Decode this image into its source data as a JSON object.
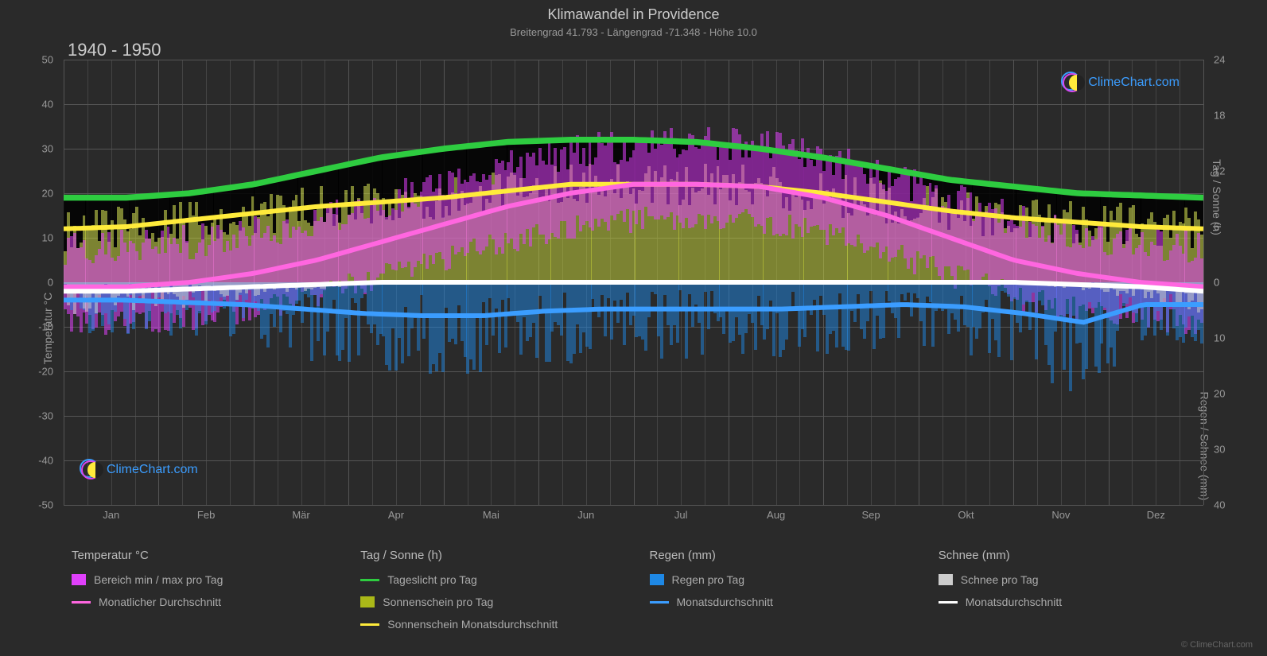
{
  "title": "Klimawandel in Providence",
  "subtitle": "Breitengrad 41.793 - Längengrad -71.348 - Höhe 10.0",
  "year_range": "1940 - 1950",
  "copyright": "© ClimeChart.com",
  "watermark_text": "ClimeChart.com",
  "watermark_color": "#3b9dff",
  "watermark_circle1": "#3b9dff",
  "watermark_circle2": "#d946ef",
  "background_color": "#2a2a2a",
  "grid_color": "#555555",
  "grid_minor_color": "#444444",
  "text_color": "#999999",
  "axis_left": {
    "label": "Temperatur °C",
    "min": -50,
    "max": 50,
    "ticks": [
      -50,
      -40,
      -30,
      -20,
      -10,
      0,
      10,
      20,
      30,
      40,
      50
    ]
  },
  "axis_right_top": {
    "label": "Tag / Sonne (h)",
    "min": 0,
    "max": 24,
    "ticks": [
      0,
      6,
      12,
      18,
      24
    ]
  },
  "axis_right_bot": {
    "label": "Regen / Schnee (mm)",
    "min": 0,
    "max": 40,
    "ticks": [
      0,
      10,
      20,
      30,
      40
    ]
  },
  "months": [
    "Jan",
    "Feb",
    "Mär",
    "Apr",
    "Mai",
    "Jun",
    "Jul",
    "Aug",
    "Sep",
    "Okt",
    "Nov",
    "Dez"
  ],
  "series": {
    "daylight": {
      "color": "#2ecc40",
      "width": 2.5,
      "label": "Tageslicht pro Tag",
      "values": [
        19,
        19,
        20,
        22,
        25,
        28,
        30,
        31.5,
        32,
        32,
        31.5,
        30,
        28,
        25.5,
        23,
        21.5,
        20,
        19.5,
        19
      ]
    },
    "sunshine_avg": {
      "color": "#ffeb3b",
      "width": 2,
      "label": "Sonnenschein Monatsdurchschnitt",
      "values": [
        12,
        12.5,
        14,
        15.5,
        17,
        18,
        19,
        20.5,
        22,
        22,
        22,
        21.5,
        20,
        18,
        16,
        14.5,
        13.5,
        12.5,
        12
      ]
    },
    "temp_avg": {
      "color": "#ff66e0",
      "width": 2,
      "label": "Monatlicher Durchschnitt",
      "values": [
        -1,
        -1,
        0,
        2,
        5,
        9,
        13,
        17,
        20,
        22,
        22,
        21.5,
        19,
        15,
        10,
        5,
        2,
        0,
        -1
      ]
    },
    "rain_avg": {
      "color": "#3b9dff",
      "width": 2,
      "label": "Monatsdurchschnitt",
      "values": [
        -4,
        -4,
        -4.5,
        -5,
        -6,
        -7,
        -7.5,
        -7.5,
        -6.5,
        -6,
        -6,
        -6,
        -6,
        -5.5,
        -5,
        -5.5,
        -7,
        -9,
        -5,
        -5
      ]
    },
    "snow_avg": {
      "color": "#ffffff",
      "width": 2,
      "label": "Monatsdurchschnitt",
      "values": [
        -2,
        -2,
        -1.5,
        -1,
        -0.5,
        0,
        0,
        0,
        0,
        0,
        0,
        0,
        0,
        0,
        0,
        0,
        -0.5,
        -1,
        -2
      ]
    }
  },
  "fills": {
    "temp_range": {
      "color": "#e040fb",
      "opacity": 0.55,
      "label": "Bereich min / max pro Tag"
    },
    "sunshine": {
      "color": "#cddc39",
      "opacity": 0.5,
      "label": "Sonnenschein pro Tag"
    },
    "rain": {
      "color": "#1e88e5",
      "opacity": 0.5,
      "label": "Regen pro Tag"
    },
    "snow": {
      "color": "#cccccc",
      "opacity": 0.55,
      "label": "Schnee pro Tag"
    },
    "black_cap": {
      "color": "#000000",
      "opacity": 0.85
    }
  },
  "legend": [
    {
      "heading": "Temperatur °C",
      "items": [
        {
          "type": "swatch",
          "color": "#e040fb",
          "label": "Bereich min / max pro Tag"
        },
        {
          "type": "line",
          "color": "#ff66e0",
          "label": "Monatlicher Durchschnitt"
        }
      ]
    },
    {
      "heading": "Tag / Sonne (h)",
      "items": [
        {
          "type": "line",
          "color": "#2ecc40",
          "label": "Tageslicht pro Tag"
        },
        {
          "type": "swatch",
          "color": "#aab818",
          "label": "Sonnenschein pro Tag"
        },
        {
          "type": "line",
          "color": "#ffeb3b",
          "label": "Sonnenschein Monatsdurchschnitt"
        }
      ]
    },
    {
      "heading": "Regen (mm)",
      "items": [
        {
          "type": "swatch",
          "color": "#1e88e5",
          "label": "Regen pro Tag"
        },
        {
          "type": "line",
          "color": "#3b9dff",
          "label": "Monatsdurchschnitt"
        }
      ]
    },
    {
      "heading": "Schnee (mm)",
      "items": [
        {
          "type": "swatch",
          "color": "#cccccc",
          "label": "Schnee pro Tag"
        },
        {
          "type": "line",
          "color": "#ffffff",
          "label": "Monatsdurchschnitt"
        }
      ]
    }
  ]
}
